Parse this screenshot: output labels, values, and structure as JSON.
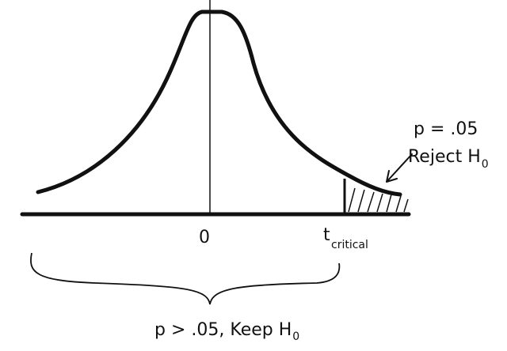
{
  "labels": {
    "zero": "0",
    "t_critical": {
      "main": "t",
      "sub": "critical"
    },
    "reject": {
      "p": "p = .05",
      "text": "Reject H",
      "sub": "0"
    },
    "keep": {
      "text": "p > .05, Keep H",
      "sub": "0"
    }
  }
}
